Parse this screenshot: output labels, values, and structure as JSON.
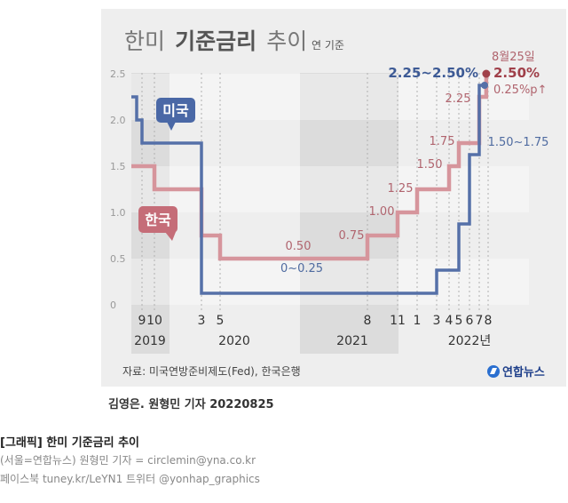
{
  "title": {
    "prefix": "한미",
    "bold": "기준금리",
    "suffix": "추이"
  },
  "unit": "연 기준",
  "source": "자료: 미국연방준비제도(Fed), 한국은행",
  "logo_text": "연합뉴스",
  "byline": "김영은. 원형민 기자 20220825",
  "caption": {
    "title": "[그래픽] 한미 기준금리 추이",
    "line1": "(서울=연합뉴스) 원형민 기자 = circlemin@yna.co.kr",
    "line2": "페이스북 tuney.kr/LeYN1 트위터 @yonhap_graphics"
  },
  "colors": {
    "us": "#5570a8",
    "korea": "#d6959c",
    "background": "#eeeeee",
    "band": "#dcdcdc"
  },
  "chart_data": {
    "type": "line",
    "step": true,
    "ylim": [
      0,
      2.5
    ],
    "yticks": [
      "0",
      "0.5",
      "1.0",
      "1.5",
      "2.0",
      "2.5"
    ],
    "x_tick_labels": [
      "9",
      "10",
      "3",
      "5",
      "8",
      "11",
      "1",
      "3",
      "4",
      "5",
      "6",
      "7",
      "8"
    ],
    "years": [
      "2019",
      "2020",
      "2021",
      "2022년"
    ],
    "series": [
      {
        "name": "미국",
        "points": [
          {
            "x": "2019-07",
            "y": 2.25
          },
          {
            "x": "2019-08",
            "y": 2.0
          },
          {
            "x": "2019-09",
            "y": 1.75
          },
          {
            "x": "2020-03",
            "y": 0.75
          },
          {
            "x": "2020-03",
            "y": 0.125
          },
          {
            "x": "2022-03",
            "y": 0.375
          },
          {
            "x": "2022-05",
            "y": 0.875
          },
          {
            "x": "2022-06",
            "y": 1.625
          },
          {
            "x": "2022-07",
            "y": 2.375
          }
        ],
        "labels": [
          "0~0.25",
          "1.50~1.75",
          "2.25~2.50%"
        ]
      },
      {
        "name": "한국",
        "points": [
          {
            "x": "2019-07",
            "y": 1.5
          },
          {
            "x": "2019-10",
            "y": 1.25
          },
          {
            "x": "2020-03",
            "y": 0.75
          },
          {
            "x": "2020-05",
            "y": 0.5
          },
          {
            "x": "2021-08",
            "y": 0.75
          },
          {
            "x": "2021-11",
            "y": 1.0
          },
          {
            "x": "2022-01",
            "y": 1.25
          },
          {
            "x": "2022-04",
            "y": 1.5
          },
          {
            "x": "2022-05",
            "y": 1.75
          },
          {
            "x": "2022-07",
            "y": 2.25
          },
          {
            "x": "2022-08-25",
            "y": 2.5
          }
        ],
        "labels": [
          "0.50",
          "0.75",
          "1.00",
          "1.25",
          "1.50",
          "1.75",
          "2.25",
          "2.50%"
        ]
      }
    ],
    "annotations": [
      "8월25일",
      "0.25%p↑"
    ]
  }
}
